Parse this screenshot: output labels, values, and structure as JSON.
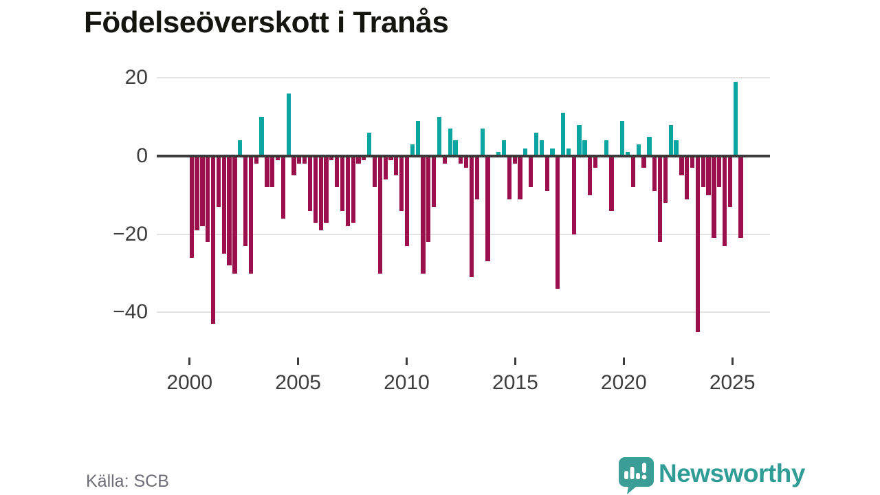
{
  "title": "Födelseöverskott i Tranås",
  "source": "Källa: SCB",
  "logo": {
    "text": "Newsworthy"
  },
  "chart_data": {
    "type": "bar",
    "title": "Födelseöverskott i Tranås",
    "frequency": "quarterly",
    "start_period": "2000-Q1",
    "end_period": "2025-Q3",
    "values": [
      -26,
      -19,
      -18,
      -22,
      -43,
      -13,
      -25,
      -28,
      -30,
      4,
      -23,
      -30,
      -2,
      10,
      -8,
      -8,
      -1,
      -16,
      16,
      -5,
      -2,
      -2,
      -14,
      -17,
      -19,
      -17,
      -1,
      -8,
      -14,
      -18,
      -17,
      -2,
      -1,
      6,
      -8,
      -30,
      -6,
      -1,
      -5,
      -14,
      -23,
      3,
      9,
      -30,
      -22,
      -13,
      10,
      -2,
      7,
      4,
      -2,
      -3,
      -31,
      -11,
      7,
      -27,
      0,
      1,
      4,
      -11,
      -2,
      -11,
      2,
      -8,
      6,
      4,
      -9,
      2,
      -34,
      11,
      2,
      -20,
      8,
      4,
      -10,
      -3,
      0,
      4,
      -14,
      0,
      9,
      1,
      -8,
      3,
      -3,
      5,
      -9,
      -22,
      -12,
      8,
      4,
      -5,
      -11,
      -3,
      -45,
      -8,
      -10,
      -21,
      -8,
      -23,
      -13,
      19,
      -21
    ],
    "y_ticks": [
      20,
      0,
      -20,
      -40
    ],
    "y_tick_labels": [
      "20",
      "0",
      "−20",
      "−40"
    ],
    "x_ticks": [
      2000,
      2005,
      2010,
      2015,
      2020,
      2025
    ],
    "x_tick_labels": [
      "2000",
      "2005",
      "2010",
      "2015",
      "2020",
      "2025"
    ],
    "ylim": [
      -47,
      22
    ],
    "grid": "horizontal",
    "legend": "none",
    "positive_color": "#0ba6a1",
    "negative_color": "#9c0f4d"
  }
}
